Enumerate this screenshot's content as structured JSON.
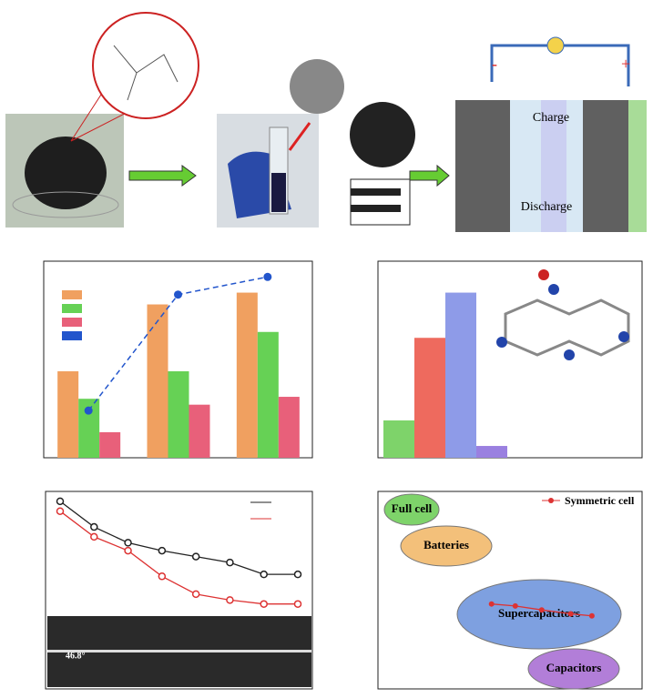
{
  "schematic": {
    "charge": "Charge",
    "discharge": "Discharge",
    "minus": "-",
    "plus": "+"
  },
  "chart_data": [
    {
      "type": "bar",
      "categories": [
        null,
        null,
        null
      ],
      "ylim": [
        0,
        100
      ],
      "series": [
        {
          "color": "#f0a060",
          "values": [
            44,
            78,
            84
          ]
        },
        {
          "color": "#66d155",
          "values": [
            30,
            44,
            64
          ]
        },
        {
          "color": "#e8607a",
          "values": [
            13,
            27,
            31
          ]
        },
        {
          "type": "line",
          "color": "#2255cc",
          "values": [
            24,
            83,
            92
          ]
        }
      ]
    },
    {
      "type": "bar",
      "categories": [
        null,
        null,
        null,
        null
      ],
      "ylim": [
        0,
        100
      ],
      "values": [
        19,
        61,
        84,
        6
      ],
      "colors": [
        "#7ed36a",
        "#ee6a5e",
        "#8e9be8",
        "#9a80e0"
      ]
    },
    {
      "type": "line",
      "categories": [
        null,
        null,
        null,
        null,
        null,
        null,
        null,
        null
      ],
      "ylim": [
        0,
        100
      ],
      "series": [
        {
          "color": "#222222",
          "values": [
            95,
            82,
            74,
            70,
            67,
            64,
            58,
            58
          ]
        },
        {
          "color": "#dd3333",
          "values": [
            90,
            77,
            70,
            57,
            48,
            45,
            43,
            43
          ]
        }
      ],
      "annotations": [
        "46.8°"
      ]
    },
    {
      "type": "scatter",
      "xlim": [
        0,
        100
      ],
      "ylim": [
        0,
        100
      ],
      "log_scale": true,
      "series": [
        {
          "name": "Symmetric cell",
          "color": "#dd3333",
          "x": [
            43,
            52,
            62,
            73,
            81
          ],
          "values": [
            43,
            42,
            40,
            38,
            37
          ]
        }
      ],
      "regions": [
        {
          "label": "Full cell",
          "color": "#7ed36a"
        },
        {
          "label": "Batteries",
          "color": "#f3c07a"
        },
        {
          "label": "Supercapacitors",
          "color": "#7ea0e0"
        },
        {
          "label": "Capacitors",
          "color": "#b27ed8"
        }
      ]
    }
  ]
}
